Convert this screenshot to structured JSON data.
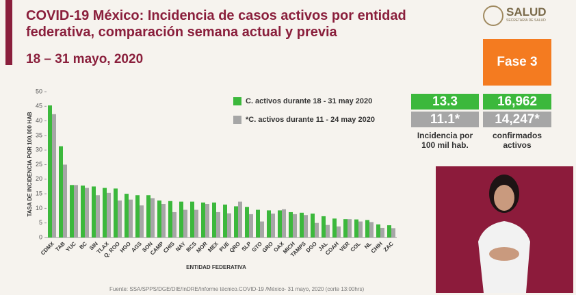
{
  "header": {
    "title_line1": "COVID-19 México: Incidencia de casos activos por entidad",
    "title_line2": "federativa, comparación semana actual y previa",
    "date": "18 – 31 mayo, 2020",
    "logo": "SALUD",
    "logo_sub": "SECRETARÍA DE SALUD"
  },
  "phase": "Fase 3",
  "stats": {
    "incidence_current": "13.3",
    "active_current": "16,962",
    "incidence_previous": "11.1*",
    "active_previous": "14,247*",
    "incidence_label_1": "Incidencia por",
    "incidence_label_2": "100 mil hab.",
    "active_label_1": "confirmados",
    "active_label_2": "activos"
  },
  "chart_data": {
    "type": "bar",
    "y_label": "TASA DE INCIDENCIA  POR 100,000 HAB",
    "x_label": "ENTIDAD FEDERATIVA",
    "categories": [
      "CDMX",
      "TAB",
      "YUC",
      "BC",
      "SIN",
      "TLAX",
      "Q. ROO",
      "HGO",
      "AGS",
      "SON",
      "CAMP",
      "CHIS",
      "NAY",
      "BCS",
      "MOR",
      "MEX",
      "PUE",
      "QRO",
      "SLP",
      "GTO",
      "GRO",
      "OAX",
      "MICH",
      "TAMPS",
      "DGO",
      "JAL",
      "COAH",
      "VER",
      "COL",
      "NL",
      "CHIH",
      "ZAC"
    ],
    "series": [
      {
        "name": "C. activos durante 18 - 31 may 2020",
        "color": "#3cb83c",
        "values": [
          45.3,
          31.3,
          18,
          17.8,
          17.5,
          17,
          16.8,
          15,
          14.5,
          14.5,
          12.7,
          12.5,
          12.3,
          12.3,
          12,
          12,
          11.3,
          10.7,
          10.5,
          9.5,
          9.3,
          9.3,
          8.7,
          8.5,
          8.2,
          7.3,
          6.5,
          6.3,
          6.2,
          6,
          4.5,
          4.2
        ]
      },
      {
        "name": "*C. activos durante  11 - 24 may 2020",
        "color": "#a6a6a6",
        "values": [
          42.3,
          25,
          18,
          17,
          14.5,
          15.3,
          12.7,
          13,
          11,
          13.5,
          11.5,
          8.7,
          9.5,
          9.5,
          11.5,
          8.7,
          8.3,
          12.3,
          8,
          5.5,
          8.2,
          9.7,
          8,
          7.7,
          5,
          4.3,
          3.8,
          6.3,
          5.5,
          5.3,
          3.3,
          3.2
        ]
      }
    ],
    "ylim": [
      0,
      50
    ],
    "yticks": [
      0,
      5,
      10,
      15,
      20,
      25,
      30,
      35,
      40,
      45,
      50
    ],
    "grid": false
  },
  "footer": "Fuente: SSA/SPPS/DGE/DIE/InDRE/Informe técnico.COVID-19 /México- 31 mayo, 2020 (corte 13:00hrs)"
}
